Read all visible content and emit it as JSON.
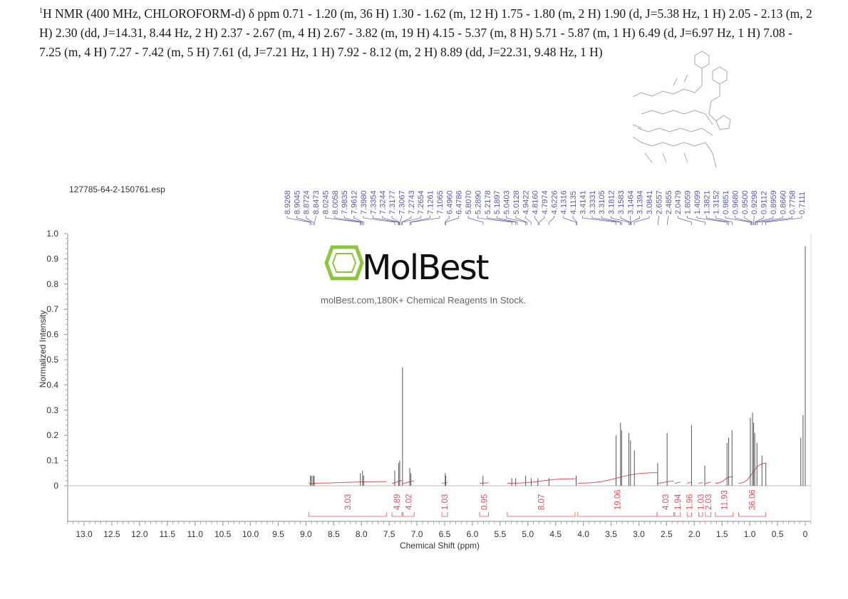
{
  "header": {
    "nmr_text": "H NMR (400 MHz, CHLOROFORM-d) δ ppm 0.71 - 1.20 (m, 36 H) 1.30 - 1.62 (m, 12 H) 1.75 - 1.80 (m, 2 H) 1.90 (d, J=5.38 Hz, 1 H) 2.05 - 2.13 (m, 2 H) 2.30 (dd, J=14.31, 8.44 Hz, 2 H) 2.37 - 2.67 (m, 4 H) 2.67 - 3.82 (m, 19 H) 4.15 - 5.37 (m, 8 H) 5.71 - 5.87 (m, 1 H) 6.49 (d, J=6.97 Hz, 1 H) 7.08 - 7.25 (m, 4 H) 7.27 - 7.42 (m, 5 H) 7.61 (d, J=7.21 Hz, 1 H) 7.92 - 8.12 (m, 2 H) 8.89 (dd, J=22.31, 9.48 Hz, 1 H)",
    "superscript": "1"
  },
  "file_name": "127785-64-2-150761.esp",
  "watermark": {
    "logo_text": "MolBest",
    "tagline": "molBest.com,180K+ Chemical Reagents In Stock."
  },
  "colors": {
    "spectrum": "#555555",
    "integral": "#e0525a",
    "peak_labels": "#5a5aa8",
    "logo_green": "#8bc63e"
  },
  "chart_data": {
    "type": "line",
    "xlabel": "Chemical Shift (ppm)",
    "ylabel": "Normalized Intensity",
    "xlim": [
      13.3,
      -0.1
    ],
    "ylim": [
      0,
      1.0
    ],
    "x_reversed": true,
    "x_ticks": [
      "13.0",
      "12.5",
      "12.0",
      "11.5",
      "11.0",
      "10.5",
      "10.0",
      "9.5",
      "9.0",
      "8.5",
      "8.0",
      "7.5",
      "7.0",
      "6.5",
      "6.0",
      "5.5",
      "5.0",
      "4.5",
      "4.0",
      "3.5",
      "3.0",
      "2.5",
      "2.0",
      "1.5",
      "1.0",
      "0.5",
      "0"
    ],
    "y_ticks": [
      "0",
      "0.1",
      "0.2",
      "0.3",
      "0.4",
      "0.5",
      "0.6",
      "0.7",
      "0.8",
      "0.9",
      "1.0"
    ],
    "peak_labels": [
      "8.9268",
      "8.9045",
      "8.8724",
      "8.8473",
      "8.0245",
      "8.0058",
      "7.9835",
      "7.9612",
      "7.3980",
      "7.3354",
      "7.3244",
      "7.3177",
      "7.3067",
      "7.2743",
      "7.2654",
      "7.1261",
      "7.1065",
      "6.4960",
      "6.4786",
      "5.8070",
      "5.2890",
      "5.2178",
      "5.1897",
      "5.0403",
      "5.0128",
      "4.9422",
      "4.8160",
      "4.7974",
      "4.6226",
      "4.1316",
      "4.1135",
      "3.4141",
      "3.3331",
      "3.3105",
      "3.1812",
      "3.1583",
      "3.1464",
      "3.1394",
      "3.0841",
      "2.6557",
      "2.4855",
      "2.0479",
      "1.8059",
      "1.4099",
      "1.3821",
      "1.3152",
      "0.9851",
      "0.9680",
      "0.9500",
      "0.9298",
      "0.9112",
      "0.8959",
      "0.8660",
      "0.7758",
      "0.7111"
    ],
    "peaks": [
      {
        "x": 8.92,
        "y": 0.04
      },
      {
        "x": 8.9,
        "y": 0.04
      },
      {
        "x": 8.87,
        "y": 0.04
      },
      {
        "x": 8.85,
        "y": 0.04
      },
      {
        "x": 8.02,
        "y": 0.05
      },
      {
        "x": 7.98,
        "y": 0.06
      },
      {
        "x": 7.96,
        "y": 0.04
      },
      {
        "x": 7.4,
        "y": 0.06
      },
      {
        "x": 7.33,
        "y": 0.09
      },
      {
        "x": 7.31,
        "y": 0.1
      },
      {
        "x": 7.26,
        "y": 0.47
      },
      {
        "x": 7.13,
        "y": 0.07
      },
      {
        "x": 7.11,
        "y": 0.05
      },
      {
        "x": 6.49,
        "y": 0.05
      },
      {
        "x": 6.48,
        "y": 0.04
      },
      {
        "x": 5.81,
        "y": 0.04
      },
      {
        "x": 5.29,
        "y": 0.03
      },
      {
        "x": 5.22,
        "y": 0.03
      },
      {
        "x": 5.04,
        "y": 0.04
      },
      {
        "x": 4.94,
        "y": 0.03
      },
      {
        "x": 4.82,
        "y": 0.03
      },
      {
        "x": 4.62,
        "y": 0.03
      },
      {
        "x": 4.13,
        "y": 0.04
      },
      {
        "x": 3.41,
        "y": 0.2
      },
      {
        "x": 3.33,
        "y": 0.25
      },
      {
        "x": 3.31,
        "y": 0.22
      },
      {
        "x": 3.18,
        "y": 0.21
      },
      {
        "x": 3.15,
        "y": 0.18
      },
      {
        "x": 3.08,
        "y": 0.14
      },
      {
        "x": 2.66,
        "y": 0.09
      },
      {
        "x": 2.49,
        "y": 0.21
      },
      {
        "x": 2.05,
        "y": 0.24
      },
      {
        "x": 1.81,
        "y": 0.08
      },
      {
        "x": 1.41,
        "y": 0.17
      },
      {
        "x": 1.38,
        "y": 0.19
      },
      {
        "x": 1.32,
        "y": 0.22
      },
      {
        "x": 0.99,
        "y": 0.27
      },
      {
        "x": 0.95,
        "y": 0.29
      },
      {
        "x": 0.93,
        "y": 0.25
      },
      {
        "x": 0.91,
        "y": 0.21
      },
      {
        "x": 0.87,
        "y": 0.17
      },
      {
        "x": 0.78,
        "y": 0.12
      },
      {
        "x": 0.71,
        "y": 0.09
      },
      {
        "x": 0.08,
        "y": 0.19
      },
      {
        "x": 0.04,
        "y": 0.28
      },
      {
        "x": 0.0,
        "y": 0.95
      }
    ],
    "integrals": [
      {
        "label": "3.03",
        "from": 8.95,
        "to": 7.55
      },
      {
        "label": "4.89",
        "from": 7.45,
        "to": 7.27
      },
      {
        "label": "4.02",
        "from": 7.25,
        "to": 7.05
      },
      {
        "label": "1.03",
        "from": 6.55,
        "to": 6.45
      },
      {
        "label": "0.95",
        "from": 5.87,
        "to": 5.71
      },
      {
        "label": "8.07",
        "from": 5.37,
        "to": 4.15
      },
      {
        "label": "19.06",
        "from": 4.1,
        "to": 2.67
      },
      {
        "label": "4.03",
        "from": 2.67,
        "to": 2.37
      },
      {
        "label": "1.94",
        "from": 2.35,
        "to": 2.25
      },
      {
        "label": "1.96",
        "from": 2.13,
        "to": 2.05
      },
      {
        "label": "1.03",
        "from": 1.92,
        "to": 1.85
      },
      {
        "label": "2.03",
        "from": 1.8,
        "to": 1.7
      },
      {
        "label": "11.93",
        "from": 1.62,
        "to": 1.3
      },
      {
        "label": "36.06",
        "from": 1.2,
        "to": 0.71
      }
    ]
  }
}
